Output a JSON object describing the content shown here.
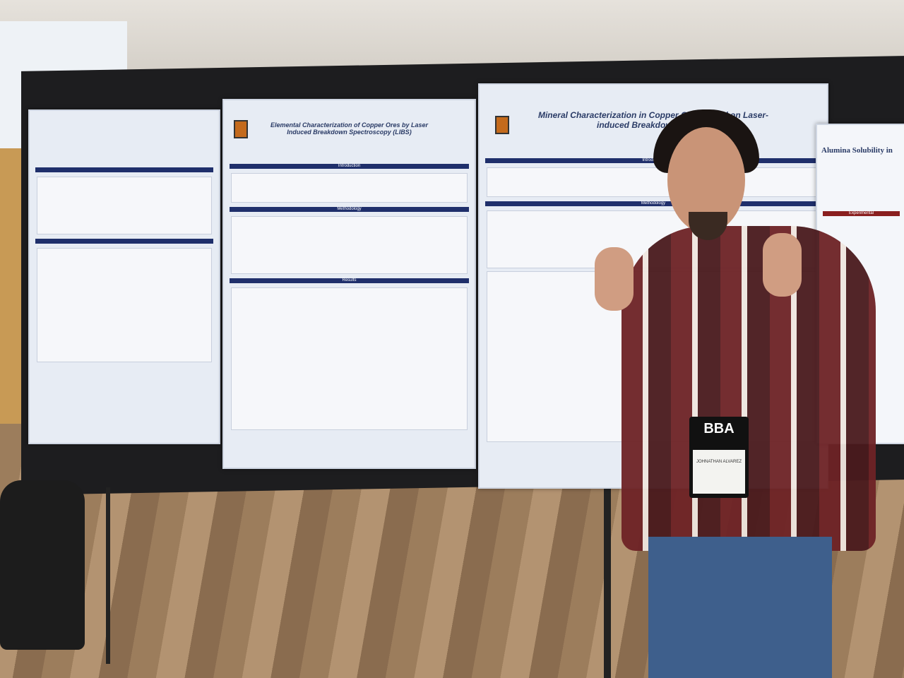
{
  "scene": {
    "posters": [
      {
        "title": "",
        "section_labels": []
      },
      {
        "title": "Elemental Characterization of Copper Ores by Laser Induced Breakdown Spectroscopy (LIBS)",
        "section_labels": [
          "Introduction",
          "Methodology",
          "Results"
        ]
      },
      {
        "title": "Mineral Characterization in Copper Ores Based on Laser-induced Breakdown Spect...",
        "section_labels": [
          "Introduction",
          "Methodology"
        ]
      },
      {
        "title": "Alumina Solubility in",
        "section_labels": [
          "Experimental"
        ]
      }
    ],
    "badge": {
      "logo": "BBA",
      "name": "JOHNATHAN ALVAREZ"
    },
    "colors": {
      "poster_header": "#1f2f6b",
      "shirt": "#6e2326",
      "jeans": "#3e5f8c",
      "logo": "#c46a1c"
    }
  }
}
